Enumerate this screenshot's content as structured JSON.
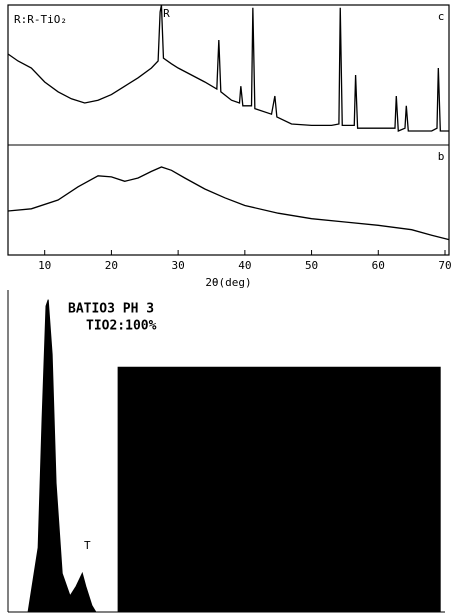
{
  "chart_data": [
    {
      "type": "line",
      "title": "R:R-TiO₂",
      "annotations": [
        {
          "text": "R",
          "x": 27.5
        }
      ],
      "xlim": [
        4.5,
        70.6
      ],
      "ylim": [
        0,
        100
      ],
      "series": [
        {
          "name": "c",
          "color": "#000000",
          "x": [
            4.5,
            6,
            8,
            10,
            12,
            14,
            16,
            18,
            20,
            22,
            24,
            26,
            27,
            27.3,
            27.5,
            27.8,
            29,
            30,
            32,
            34,
            35.8,
            36.1,
            36.4,
            38,
            39.2,
            39.4,
            39.7,
            41.0,
            41.2,
            41.5,
            44,
            44.5,
            44.8,
            47,
            50,
            53,
            54.1,
            54.3,
            54.6,
            56.4,
            56.6,
            56.9,
            60,
            62.5,
            62.7,
            63,
            64,
            64.2,
            64.5,
            68,
            68.8,
            69,
            69.3,
            70.6
          ],
          "values": [
            65,
            60,
            55,
            45,
            38,
            33,
            30,
            32,
            36,
            42,
            48,
            55,
            60,
            95,
            100,
            62,
            58,
            55,
            50,
            45,
            40,
            75,
            38,
            32,
            30,
            42,
            28,
            28,
            98,
            26,
            22,
            35,
            20,
            15,
            14,
            14,
            15,
            98,
            14,
            14,
            50,
            12,
            12,
            12,
            35,
            10,
            12,
            28,
            10,
            10,
            12,
            55,
            10,
            10
          ]
        }
      ]
    },
    {
      "type": "line",
      "x_label": "2θ(deg)",
      "xlim": [
        4.5,
        70.6
      ],
      "ylim": [
        0,
        100
      ],
      "xticks": [
        10,
        20,
        30,
        40,
        50,
        60,
        70
      ],
      "series": [
        {
          "name": "b",
          "color": "#000000",
          "x": [
            4.5,
            8,
            12,
            15,
            18,
            20,
            22,
            24,
            26,
            27.5,
            29,
            31,
            34,
            37,
            40,
            45,
            50,
            55,
            60,
            65,
            68,
            70.6
          ],
          "values": [
            40,
            42,
            50,
            62,
            72,
            71,
            67,
            70,
            76,
            80,
            77,
            70,
            60,
            52,
            45,
            38,
            33,
            30,
            27,
            23,
            18,
            14
          ]
        }
      ]
    },
    {
      "type": "area",
      "title": "BATIO3 PH 3",
      "subtitle": "TIO2:100%",
      "annotations": [
        {
          "text": "T",
          "x": 17.0
        }
      ],
      "xlim": [
        0,
        100
      ],
      "ylim": [
        0,
        100
      ],
      "series": [
        {
          "color": "#000000",
          "x": [
            4.6,
            6.9,
            7.8,
            8.7,
            9.2,
            10.1,
            11.0,
            12.4,
            14.2,
            15.6,
            17.0,
            17.8,
            19.2,
            20.1,
            25.2,
            25.2,
            98.9,
            98.9
          ],
          "values": [
            0,
            20,
            60,
            95,
            97,
            80,
            40,
            12,
            5,
            8,
            12,
            8,
            2,
            0,
            0,
            76,
            76,
            0
          ]
        }
      ]
    }
  ]
}
